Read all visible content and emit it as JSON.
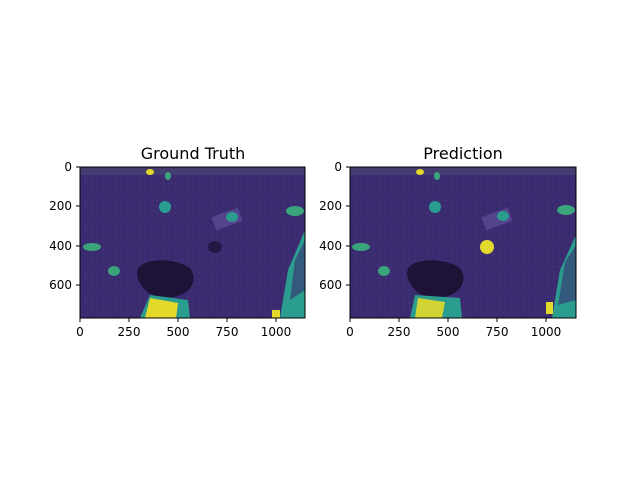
{
  "panels": [
    {
      "title": "Ground Truth",
      "xticks": [
        "0",
        "250",
        "500",
        "750",
        "1000"
      ],
      "yticks": [
        "0",
        "200",
        "400",
        "600"
      ]
    },
    {
      "title": "Prediction",
      "xticks": [
        "0",
        "250",
        "500",
        "750",
        "1000"
      ],
      "yticks": [
        "0",
        "200",
        "400",
        "600"
      ]
    }
  ],
  "colors": {
    "background": "#3a2a6e",
    "segment_teal": "#2a9d8f",
    "segment_green": "#3aa57a",
    "segment_yellow": "#e3d92a",
    "shadow": "#1e1236"
  }
}
